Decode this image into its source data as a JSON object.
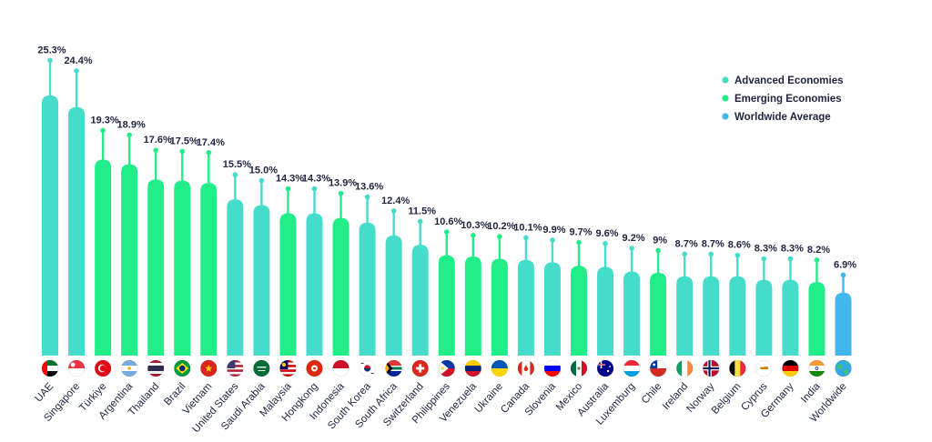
{
  "chart_data": {
    "type": "bar",
    "title": "",
    "xlabel": "",
    "ylabel": "",
    "ylim": [
      0,
      26
    ],
    "legend": {
      "position": "top-right",
      "items": [
        {
          "key": "advanced",
          "label": "Advanced Economies",
          "color": "#46dccb"
        },
        {
          "key": "emerging",
          "label": "Emerging Economies",
          "color": "#21ee88"
        },
        {
          "key": "worldwide",
          "label": "Worldwide Average",
          "color": "#44b6ee"
        }
      ]
    },
    "categories": [
      "UAE",
      "Singapore",
      "Türkiye",
      "Argentina",
      "Thailand",
      "Brazil",
      "Vietnam",
      "United States",
      "Saudi Arabia",
      "Malaysia",
      "Hongkong",
      "Indonesia",
      "South Korea",
      "South Africa",
      "Switzerland",
      "Philippines",
      "Venezuela",
      "Ukraine",
      "Canada",
      "Slovenia",
      "Mexico",
      "Australia",
      "Luxemburg",
      "Chile",
      "Ireland",
      "Norway",
      "Belgium",
      "Cyprus",
      "Germany",
      "India",
      "Worldwide"
    ],
    "groups": [
      "advanced",
      "advanced",
      "emerging",
      "emerging",
      "emerging",
      "emerging",
      "emerging",
      "advanced",
      "advanced",
      "emerging",
      "advanced",
      "emerging",
      "advanced",
      "advanced",
      "advanced",
      "emerging",
      "emerging",
      "emerging",
      "advanced",
      "advanced",
      "emerging",
      "advanced",
      "advanced",
      "emerging",
      "advanced",
      "advanced",
      "advanced",
      "advanced",
      "advanced",
      "emerging",
      "worldwide"
    ],
    "values": [
      25.3,
      24.4,
      19.3,
      18.9,
      17.6,
      17.5,
      17.4,
      15.5,
      15.0,
      14.3,
      14.3,
      13.9,
      13.6,
      12.4,
      11.5,
      10.6,
      10.3,
      10.2,
      10.1,
      9.9,
      9.7,
      9.6,
      9.2,
      9,
      8.7,
      8.7,
      8.6,
      8.3,
      8.3,
      8.2,
      6.9
    ],
    "bar_tops": [
      22.3,
      21.3,
      16.8,
      16.4,
      15.1,
      15.0,
      14.8,
      13.4,
      12.9,
      12.2,
      12.2,
      11.8,
      11.4,
      10.3,
      9.5,
      8.6,
      8.5,
      8.3,
      8.2,
      8.0,
      7.7,
      7.6,
      7.2,
      7.1,
      6.8,
      6.8,
      6.8,
      6.5,
      6.5,
      6.3,
      5.4
    ],
    "value_labels": [
      "25.3%",
      "24.4%",
      "19.3%",
      "18.9%",
      "17.6%",
      "17.5%",
      "17.4%",
      "15.5%",
      "15.0%",
      "14.3%",
      "14.3%",
      "13.9%",
      "13.6%",
      "12.4%",
      "11.5%",
      "10.6%",
      "10.3%",
      "10.2%",
      "10.1%",
      "9.9%",
      "9.7%",
      "9.6%",
      "9.2%",
      "9%",
      "8.7%",
      "8.7%",
      "8.6%",
      "8.3%",
      "8.3%",
      "8.2%",
      "6.9%"
    ],
    "flags": [
      "uae-flag-icon",
      "singapore-flag-icon",
      "turkiye-flag-icon",
      "argentina-flag-icon",
      "thailand-flag-icon",
      "brazil-flag-icon",
      "vietnam-flag-icon",
      "united-states-flag-icon",
      "saudi-arabia-flag-icon",
      "malaysia-flag-icon",
      "hongkong-flag-icon",
      "indonesia-flag-icon",
      "south-korea-flag-icon",
      "south-africa-flag-icon",
      "switzerland-flag-icon",
      "philippines-flag-icon",
      "venezuela-flag-icon",
      "ukraine-flag-icon",
      "canada-flag-icon",
      "slovenia-flag-icon",
      "mexico-flag-icon",
      "australia-flag-icon",
      "luxemburg-flag-icon",
      "chile-flag-icon",
      "ireland-flag-icon",
      "norway-flag-icon",
      "belgium-flag-icon",
      "cyprus-flag-icon",
      "germany-flag-icon",
      "india-flag-icon",
      "globe-icon"
    ]
  }
}
